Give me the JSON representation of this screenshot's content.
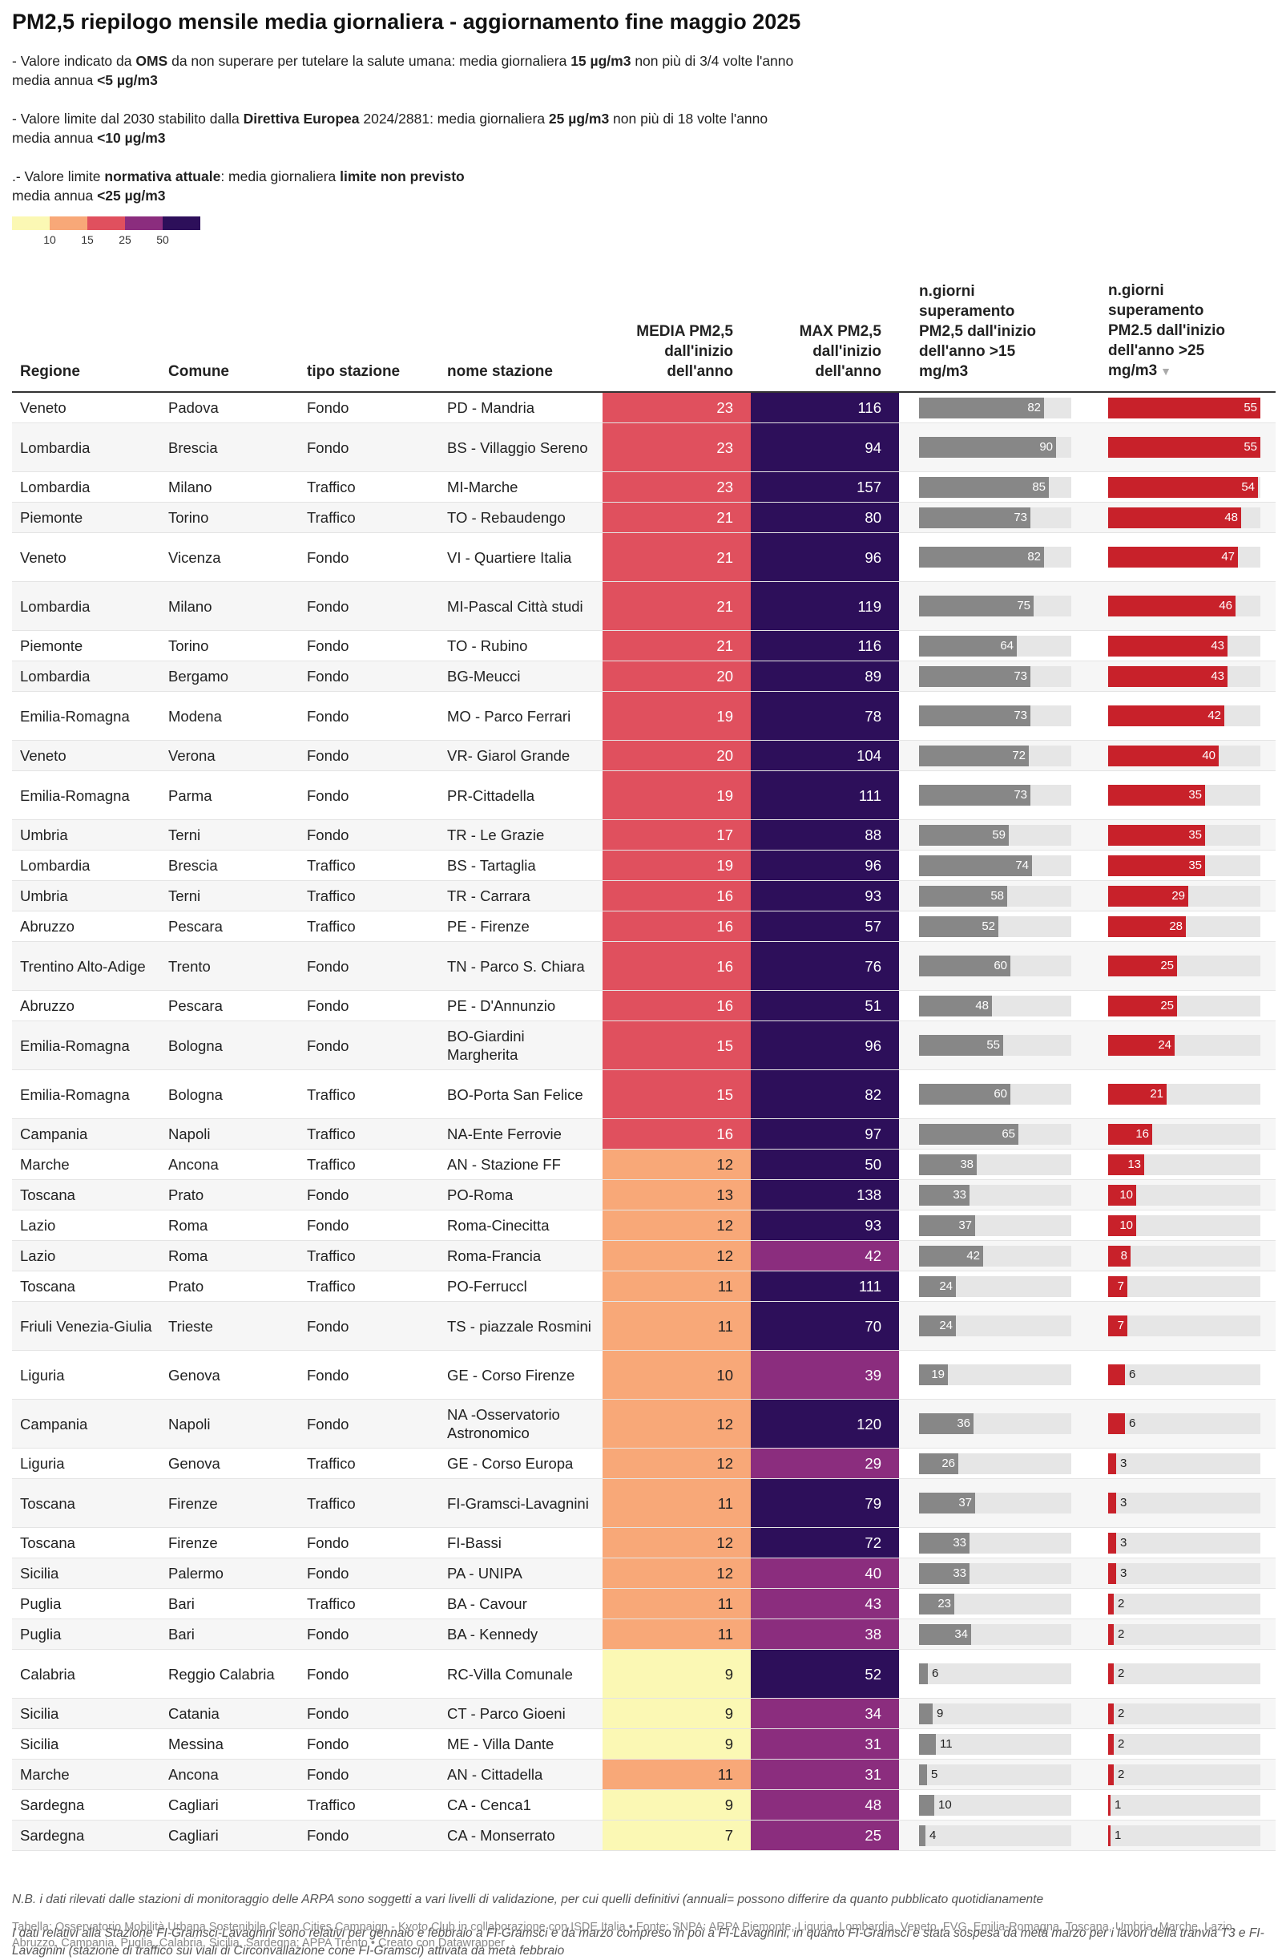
{
  "title": "PM2,5 riepilogo mensile media giornaliera - aggiornamento fine maggio 2025",
  "intro": {
    "line1": [
      {
        "t": "- Valore indicato da ",
        "b": false
      },
      {
        "t": "OMS",
        "b": true
      },
      {
        "t": " da non superare per tutelare la salute umana: media giornaliera ",
        "b": false
      },
      {
        "t": "15 µg/m3",
        "b": true
      },
      {
        "t": " non più di 3/4 volte l'anno",
        "b": false
      }
    ],
    "line2": [
      {
        "t": "media annua ",
        "b": false
      },
      {
        "t": "<5 µg/m3",
        "b": true
      }
    ],
    "line3": [
      {
        "t": "- Valore limite dal 2030 stabilito dalla ",
        "b": false
      },
      {
        "t": "Direttiva Europea",
        "b": true
      },
      {
        "t": " 2024/2881: media giornaliera ",
        "b": false
      },
      {
        "t": "25 µg/m3",
        "b": true
      },
      {
        "t": " non più di 18 volte l'anno",
        "b": false
      }
    ],
    "line4": [
      {
        "t": "media annua ",
        "b": false
      },
      {
        "t": "<10 µg/m3",
        "b": true
      }
    ],
    "line5": [
      {
        "t": ".- Valore limite ",
        "b": false
      },
      {
        "t": "normativa attuale",
        "b": true
      },
      {
        "t": ": media giornaliera ",
        "b": false
      },
      {
        "t": "limite non previsto",
        "b": true
      }
    ],
    "line6": [
      {
        "t": "media annua ",
        "b": false
      },
      {
        "t": "<25 µg/m3",
        "b": true
      }
    ]
  },
  "legend": {
    "colors": [
      "#fbf8b4",
      "#f8a878",
      "#e0505e",
      "#8b2d7e",
      "#2d0f5a"
    ],
    "labels": [
      "10",
      "15",
      "25",
      "50"
    ]
  },
  "colors": {
    "bar_gray": "#878787",
    "bar_red": "#c8212a",
    "track": "#e6e6e6"
  },
  "chart_data": {
    "type": "table",
    "columns": [
      "Regione",
      "Comune",
      "tipo stazione",
      "nome stazione",
      "MEDIA PM2,5 dall'inizio dell'anno",
      "MAX PM2,5 dall'inizio dell'anno",
      "n.giorni superamento PM2,5 dall'inizio dell'anno >15 mg/m3",
      "n.giorni superamento PM2.5 dall'inizio dell'anno >25 mg/m3"
    ],
    "sorted_by": "n.giorni superamento PM2.5 dall'inizio dell'anno >25 mg/m3",
    "sort_icon": "sort-desc-icon",
    "bar_max": [
      100,
      55
    ],
    "rows": [
      [
        "Veneto",
        "Padova",
        "Fondo",
        "PD - Mandria",
        23,
        116,
        82,
        55
      ],
      [
        "Lombardia",
        "Brescia",
        "Fondo",
        "BS - Villaggio Sereno",
        23,
        94,
        90,
        55
      ],
      [
        "Lombardia",
        "Milano",
        "Traffico",
        "MI-Marche",
        23,
        157,
        85,
        54
      ],
      [
        "Piemonte",
        "Torino",
        "Traffico",
        "TO - Rebaudengo",
        21,
        80,
        73,
        48
      ],
      [
        "Veneto",
        "Vicenza",
        "Fondo",
        "VI - Quartiere Italia",
        21,
        96,
        82,
        47
      ],
      [
        "Lombardia",
        "Milano",
        "Fondo",
        "MI-Pascal Città studi",
        21,
        119,
        75,
        46
      ],
      [
        "Piemonte",
        "Torino",
        "Fondo",
        "TO - Rubino",
        21,
        116,
        64,
        43
      ],
      [
        "Lombardia",
        "Bergamo",
        "Fondo",
        "BG-Meucci",
        20,
        89,
        73,
        43
      ],
      [
        "Emilia-Romagna",
        "Modena",
        "Fondo",
        "MO - Parco Ferrari",
        19,
        78,
        73,
        42
      ],
      [
        "Veneto",
        "Verona",
        "Fondo",
        "VR- Giarol Grande",
        20,
        104,
        72,
        40
      ],
      [
        "Emilia-Romagna",
        "Parma",
        "Fondo",
        "PR-Cittadella",
        19,
        111,
        73,
        35
      ],
      [
        "Umbria",
        "Terni",
        "Fondo",
        "TR - Le Grazie",
        17,
        88,
        59,
        35
      ],
      [
        "Lombardia",
        "Brescia",
        "Traffico",
        "BS - Tartaglia",
        19,
        96,
        74,
        35
      ],
      [
        "Umbria",
        "Terni",
        "Traffico",
        "TR - Carrara",
        16,
        93,
        58,
        29
      ],
      [
        "Abruzzo",
        "Pescara",
        "Traffico",
        "PE - Firenze",
        16,
        57,
        52,
        28
      ],
      [
        "Trentino Alto-Adige",
        "Trento",
        "Fondo",
        "TN - Parco S. Chiara",
        16,
        76,
        60,
        25
      ],
      [
        "Abruzzo",
        "Pescara",
        "Fondo",
        "PE - D'Annunzio",
        16,
        51,
        48,
        25
      ],
      [
        "Emilia-Romagna",
        "Bologna",
        "Fondo",
        "BO-Giardini Margherita",
        15,
        96,
        55,
        24
      ],
      [
        "Emilia-Romagna",
        "Bologna",
        "Traffico",
        "BO-Porta San Felice",
        15,
        82,
        60,
        21
      ],
      [
        "Campania",
        "Napoli",
        "Traffico",
        "NA-Ente Ferrovie",
        16,
        97,
        65,
        16
      ],
      [
        "Marche",
        "Ancona",
        "Traffico",
        "AN - Stazione FF",
        12,
        50,
        38,
        13
      ],
      [
        "Toscana",
        "Prato",
        "Fondo",
        "PO-Roma",
        13,
        138,
        33,
        10
      ],
      [
        "Lazio",
        "Roma",
        "Fondo",
        "Roma-Cinecitta",
        12,
        93,
        37,
        10
      ],
      [
        "Lazio",
        "Roma",
        "Traffico",
        "Roma-Francia",
        12,
        42,
        42,
        8
      ],
      [
        "Toscana",
        "Prato",
        "Traffico",
        "PO-Ferruccl",
        11,
        111,
        24,
        7
      ],
      [
        "Friuli Venezia-Giulia",
        "Trieste",
        "Fondo",
        "TS - piazzale Rosmini",
        11,
        70,
        24,
        7
      ],
      [
        "Liguria",
        "Genova",
        "Fondo",
        "GE - Corso Firenze",
        10,
        39,
        19,
        6
      ],
      [
        "Campania",
        "Napoli",
        "Fondo",
        "NA -Osservatorio Astronomico",
        12,
        120,
        36,
        6
      ],
      [
        "Liguria",
        "Genova",
        "Traffico",
        "GE - Corso Europa",
        12,
        29,
        26,
        3
      ],
      [
        "Toscana",
        "Firenze",
        "Traffico",
        "FI-Gramsci-Lavagnini",
        11,
        79,
        37,
        3
      ],
      [
        "Toscana",
        "Firenze",
        "Fondo",
        "FI-Bassi",
        12,
        72,
        33,
        3
      ],
      [
        "Sicilia",
        "Palermo",
        "Fondo",
        "PA - UNIPA",
        12,
        40,
        33,
        3
      ],
      [
        "Puglia",
        "Bari",
        "Traffico",
        "BA - Cavour",
        11,
        43,
        23,
        2
      ],
      [
        "Puglia",
        "Bari",
        "Fondo",
        "BA - Kennedy",
        11,
        38,
        34,
        2
      ],
      [
        "Calabria",
        "Reggio Calabria",
        "Fondo",
        "RC-Villa Comunale",
        9,
        52,
        6,
        2
      ],
      [
        "Sicilia",
        "Catania",
        "Fondo",
        "CT - Parco Gioeni",
        9,
        34,
        9,
        2
      ],
      [
        "Sicilia",
        "Messina",
        "Fondo",
        "ME - Villa Dante",
        9,
        31,
        11,
        2
      ],
      [
        "Marche",
        "Ancona",
        "Fondo",
        "AN - Cittadella",
        11,
        31,
        5,
        2
      ],
      [
        "Sardegna",
        "Cagliari",
        "Traffico",
        "CA - Cenca1",
        9,
        48,
        10,
        1
      ],
      [
        "Sardegna",
        "Cagliari",
        "Fondo",
        "CA - Monserrato",
        7,
        25,
        4,
        1
      ]
    ]
  },
  "footnotes": {
    "nb": "N.B. i dati rilevati dalle stazioni di monitoraggio delle ARPA sono soggetti a vari livelli di validazione, per cui quelli definitivi (annuali= possono differire da quanto pubblicato quotidianamente",
    "fi": "I dati relativi alla Stazione FI-Gramsci-Lavagnini sono relativi per gennaio e febbraio a FI-Gramsci e da marzo compreso in poi a FI-Lavagnini, in quanto FI-Gramsci è stata sospesa da metà marzo per i lavori della tranvia T3 e FI-Lavagnini (stazione di traffico sui viali di Circonvallazione cone FI-Gramsci) attivata da metà febbraio",
    "credit": "Tabella: Osservatorio Mobilità Urbana Sostenibile Clean Cities Campaign - Kyoto Club in collaborazione con ISDE Italia • Fonte: SNPA: ARPA Piemonte, Liguria, Lombardia, Veneto, FVG, Emilia-Romagna, Toscana, Umbria, Marche, Lazio, Abruzzo, Campania, Puglia, Calabria, Sicilia, Sardegna; APPA Trento • Creato con Datawrapper"
  }
}
